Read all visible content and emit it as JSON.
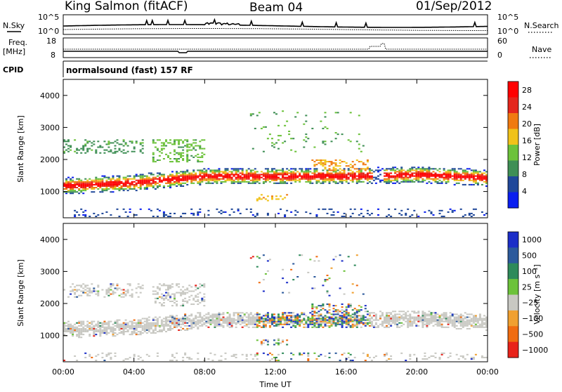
{
  "header": {
    "station": "King Salmon (fitACF)",
    "beam": "Beam 04",
    "date": "01/Sep/2012"
  },
  "params": {
    "nsky_label": "N.Sky",
    "nsearch_label": "N.Search",
    "freq_label_1": "Freq.",
    "freq_label_2": "[MHz]",
    "nave_label": "Nave",
    "cpid_label": "CPID",
    "cpid_value": "normalsound (fast) 157 RF",
    "noise_left_ticks": [
      "10^5",
      "10^0"
    ],
    "noise_right_ticks": [
      "10^5",
      "10^0"
    ],
    "freq_left_ticks": [
      "18",
      "8"
    ],
    "freq_right_ticks": [
      "60",
      "0"
    ]
  },
  "chart_data": [
    {
      "type": "heatmap",
      "quantity": "Power",
      "xlabel": "",
      "ylabel": "Slant Range [km]",
      "x_range": [
        "00:00",
        "24:00"
      ],
      "xticks": [
        "00:00",
        "04:00",
        "08:00",
        "12:00",
        "16:00",
        "20:00",
        "00:00"
      ],
      "ylim": [
        180,
        4500
      ],
      "yticks": [
        "1000",
        "2000",
        "3000",
        "4000"
      ],
      "colorbar": {
        "label": "Power [dB]",
        "ticks": [
          "4",
          "8",
          "12",
          "16",
          "20",
          "24",
          "28"
        ],
        "range": [
          0,
          30
        ],
        "colors": [
          "#0a1ef0",
          "#20489a",
          "#3f8f55",
          "#6cc23a",
          "#f0c21a",
          "#f07a10",
          "#e4261c",
          "#ff0000"
        ]
      },
      "main_band": [
        {
          "time_h": 0,
          "range_km": 1150
        },
        {
          "time_h": 4,
          "range_km": 1250
        },
        {
          "time_h": 8,
          "range_km": 1450
        },
        {
          "time_h": 12,
          "range_km": 1450
        },
        {
          "time_h": 16,
          "range_km": 1450
        },
        {
          "time_h": 20,
          "range_km": 1500
        },
        {
          "time_h": 24,
          "range_km": 1400
        }
      ]
    },
    {
      "type": "heatmap",
      "quantity": "Velocity",
      "xlabel": "Time UT",
      "ylabel": "Slant Range [km]",
      "x_range": [
        "00:00",
        "24:00"
      ],
      "xticks": [
        "00:00",
        "04:00",
        "08:00",
        "12:00",
        "16:00",
        "20:00",
        "00:00"
      ],
      "ylim": [
        180,
        4500
      ],
      "yticks": [
        "1000",
        "2000",
        "3000",
        "4000"
      ],
      "colorbar": {
        "label": "Velocity [m s⁻¹]",
        "ticks": [
          "1000",
          "500",
          "100",
          "25",
          "−25",
          "−100",
          "−500",
          "−1000"
        ],
        "colors": [
          "#1c2ec8",
          "#2c5a9c",
          "#2e8a5a",
          "#6cc23a",
          "#c8c8c2",
          "#f0a030",
          "#f06c10",
          "#e8221a"
        ]
      }
    }
  ]
}
